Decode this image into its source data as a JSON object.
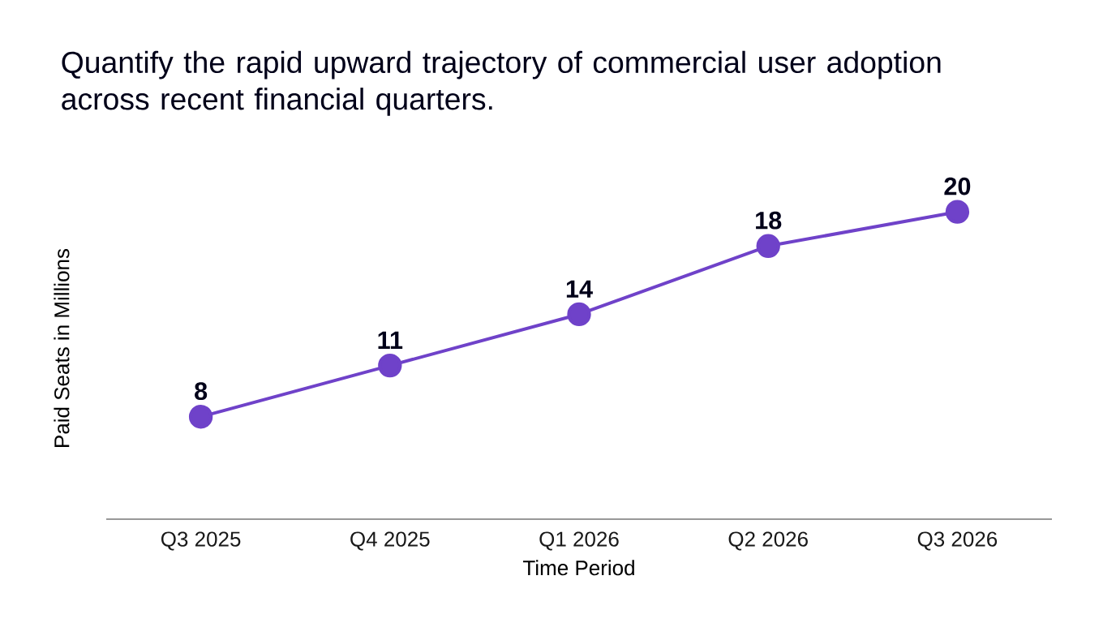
{
  "chart_data": {
    "type": "line",
    "title": "Quantify the rapid upward trajectory of commercial user adoption across recent financial quarters.",
    "xlabel": "Time Period",
    "ylabel": "Paid Seats in Millions",
    "categories": [
      "Q3 2025",
      "Q4 2025",
      "Q1 2026",
      "Q2 2026",
      "Q3 2026"
    ],
    "values": [
      8,
      11,
      14,
      18,
      20
    ],
    "value_labels": [
      "8",
      "11",
      "14",
      "18",
      "20"
    ],
    "color": "#6f42c9",
    "marker": "circle",
    "line_style": "solid"
  }
}
